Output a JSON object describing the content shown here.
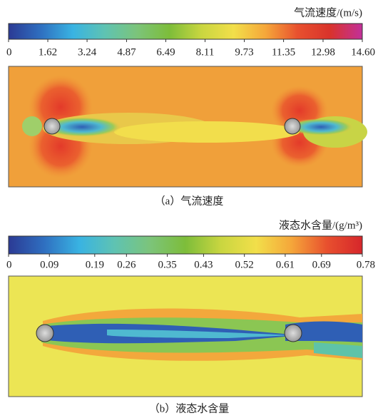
{
  "chart_data": [
    {
      "type": "contour",
      "title": "气流速度/(m/s)",
      "caption": "（a）气流速度",
      "clim": [
        0,
        14.6
      ],
      "ticks": [
        0,
        1.62,
        3.24,
        4.87,
        6.49,
        8.11,
        9.73,
        11.35,
        12.98,
        {
          "value": 14.6,
          "label": "14.60"
        }
      ],
      "colormap": [
        "#2b3a94",
        "#2f6fc0",
        "#39b3e2",
        "#5fc3b2",
        "#7cc47a",
        "#7dbd3a",
        "#c9d640",
        "#f2df4a",
        "#f5a63a",
        "#e8502e",
        "#d9332c",
        "#c2309a"
      ]
    },
    {
      "type": "contour",
      "title": "液态水含量/(g/m³)",
      "caption": "（b）液态水含量",
      "clim": [
        0,
        0.78
      ],
      "ticks": [
        0,
        0.09,
        0.19,
        0.26,
        0.35,
        0.43,
        0.52,
        0.61,
        0.69,
        0.78
      ],
      "colormap": [
        "#2b3a94",
        "#2f6fc0",
        "#39b3e2",
        "#5fc3b2",
        "#7cc47a",
        "#7dbd3a",
        "#c9d640",
        "#f2df4a",
        "#f5a63a",
        "#e8502e",
        "#d6262b"
      ]
    }
  ]
}
